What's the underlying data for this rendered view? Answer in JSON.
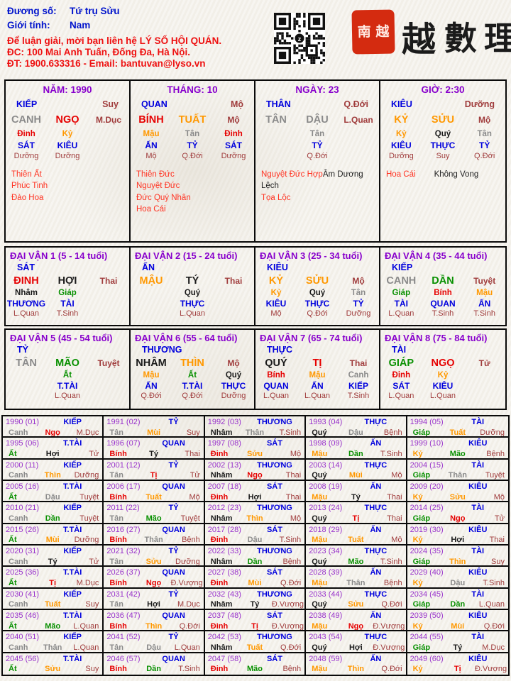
{
  "colors": {
    "metal": "#8a8a8a",
    "fire": "#e60000",
    "earth": "#ff9800",
    "wood": "#089000",
    "water": "#1a1a1a",
    "blue": "#0000dd",
    "stage": "#a03c3c",
    "purple": "#8800cc",
    "year": "#9933cc",
    "red": "#ff3322",
    "blueheader": "#0013cc",
    "redheader": "#ee1111",
    "seal": "#d42b10"
  },
  "header": {
    "owner_label": "Đương số:",
    "owner_value": "Tứ trụ Sửu",
    "gender_label": "Giới tính:",
    "gender_value": "Nam",
    "contact1": "Để luận giải, mời bạn liên hệ LÝ SỐ HỘI QUÁN.",
    "contact2": "ĐC: 100 Mai Anh Tuấn, Đống Đa, Hà Nội.",
    "contact3": "ĐT: 1900.633316 - Email: bantuvan@lyso.vn",
    "qr_logo": "z",
    "seal_text": [
      "南",
      "越"
    ],
    "brand_chars": [
      "南",
      "越",
      "數",
      "理"
    ]
  },
  "pillars": [
    {
      "title": "NĂM: 1990",
      "god": "KIẾP",
      "stage_top": "Suy",
      "stem": "CANH",
      "stem_el": "metal",
      "branch": "NGỌ",
      "branch_el": "fire",
      "stage": "M.Dục",
      "hidden": [
        {
          "name": "Đinh",
          "el": "fire",
          "god": "SÁT",
          "stage": "Dưỡng"
        },
        {
          "name": "Kỷ",
          "el": "earth",
          "god": "KIÊU",
          "stage": "Dưỡng"
        },
        null
      ],
      "stars": [
        [
          {
            "t": "Thiên Ất",
            "c": "red"
          }
        ],
        [
          {
            "t": "Phúc Tinh",
            "c": "red"
          }
        ],
        [
          {
            "t": "Đào Hoa",
            "c": "red"
          }
        ]
      ]
    },
    {
      "title": "THÁNG: 10",
      "god": "QUAN",
      "stage_top": "Mộ",
      "stem": "BÍNH",
      "stem_el": "fire",
      "branch": "TUẤT",
      "branch_el": "earth",
      "stage": "Mộ",
      "hidden": [
        {
          "name": "Mậu",
          "el": "earth",
          "god": "ẤN",
          "stage": "Mộ"
        },
        {
          "name": "Tân",
          "el": "metal",
          "god": "TỶ",
          "stage": "Q.Đới"
        },
        {
          "name": "Đinh",
          "el": "fire",
          "god": "SÁT",
          "stage": "Dưỡng"
        }
      ],
      "stars": [
        [
          {
            "t": "Thiên Đức",
            "c": "red"
          }
        ],
        [
          {
            "t": "Nguyệt Đức",
            "c": "red"
          }
        ],
        [
          {
            "t": "Đức Quý Nhân",
            "c": "red"
          }
        ],
        [
          {
            "t": "Hoa Cái",
            "c": "red"
          }
        ]
      ]
    },
    {
      "title": "NGÀY: 23",
      "god": "THÂN",
      "stage_top": "Q.Đới",
      "stem": "TÂN",
      "stem_el": "metal",
      "branch": "DẬU",
      "branch_el": "metal",
      "stage": "L.Quan",
      "hidden": [
        null,
        {
          "name": "Tân",
          "el": "metal",
          "god": "TỶ",
          "stage": "Q.Đới"
        },
        null
      ],
      "stars": [
        [
          {
            "t": "Nguyệt Đức Hợp",
            "c": "red"
          },
          {
            "t": "Âm Dương Lệch",
            "c": "black"
          }
        ],
        [
          {
            "t": "Tọa Lộc",
            "c": "red"
          }
        ]
      ]
    },
    {
      "title": "GIỜ: 2:30",
      "god": "KIÊU",
      "stage_top": "Dưỡng",
      "stem": "KỶ",
      "stem_el": "earth",
      "branch": "SỬU",
      "branch_el": "earth",
      "stage": "Mộ",
      "hidden": [
        {
          "name": "Kỷ",
          "el": "earth",
          "god": "KIÊU",
          "stage": "Dưỡng"
        },
        {
          "name": "Quý",
          "el": "water",
          "god": "THỰC",
          "stage": "Suy"
        },
        {
          "name": "Tân",
          "el": "metal",
          "god": "TỶ",
          "stage": "Q.Đới"
        }
      ],
      "stars": [
        [
          {
            "t": "Hoa Cái",
            "c": "red"
          },
          {
            "t": "Không Vong",
            "c": "black",
            "gap": true
          }
        ]
      ]
    }
  ],
  "daivan": [
    {
      "title": "ĐẠI VẬN 1 (5 - 14 tuổi)",
      "god": "SÁT",
      "stem": "ĐINH",
      "stem_el": "fire",
      "branch": "HỢI",
      "branch_el": "water",
      "stage": "Thai",
      "hidden": [
        {
          "name": "Nhâm",
          "el": "water",
          "god": "THƯƠNG",
          "stage": "L.Quan"
        },
        {
          "name": "Giáp",
          "el": "wood",
          "god": "TÀI",
          "stage": "T.Sinh"
        },
        null
      ]
    },
    {
      "title": "ĐẠI VẬN 2 (15 - 24 tuổi)",
      "god": "ẤN",
      "stem": "MẬU",
      "stem_el": "earth",
      "branch": "TÝ",
      "branch_el": "water",
      "stage": "Thai",
      "hidden": [
        null,
        {
          "name": "Quý",
          "el": "water",
          "god": "THỰC",
          "stage": "L.Quan"
        },
        null
      ]
    },
    {
      "title": "ĐẠI VẬN 3 (25 - 34 tuổi)",
      "god": "KIÊU",
      "stem": "KỶ",
      "stem_el": "earth",
      "branch": "SỬU",
      "branch_el": "earth",
      "stage": "Mộ",
      "hidden": [
        {
          "name": "Kỷ",
          "el": "earth",
          "god": "KIÊU",
          "stage": "Mộ"
        },
        {
          "name": "Quý",
          "el": "water",
          "god": "THỰC",
          "stage": "Q.Đới"
        },
        {
          "name": "Tân",
          "el": "metal",
          "god": "TỶ",
          "stage": "Dưỡng"
        }
      ]
    },
    {
      "title": "ĐẠI VẬN 4 (35 - 44 tuổi)",
      "god": "KIẾP",
      "stem": "CANH",
      "stem_el": "metal",
      "branch": "DẦN",
      "branch_el": "wood",
      "stage": "Tuyệt",
      "hidden": [
        {
          "name": "Giáp",
          "el": "wood",
          "god": "TÀI",
          "stage": "L.Quan"
        },
        {
          "name": "Bính",
          "el": "fire",
          "god": "QUAN",
          "stage": "T.Sinh"
        },
        {
          "name": "Mậu",
          "el": "earth",
          "god": "ẤN",
          "stage": "T.Sinh"
        }
      ]
    },
    {
      "title": "ĐẠI VẬN 5 (45 - 54 tuổi)",
      "god": "TỶ",
      "stem": "TÂN",
      "stem_el": "metal",
      "branch": "MÃO",
      "branch_el": "wood",
      "stage": "Tuyệt",
      "hidden": [
        null,
        {
          "name": "Ất",
          "el": "wood",
          "god": "T.TÀI",
          "stage": "L.Quan"
        },
        null
      ]
    },
    {
      "title": "ĐẠI VẬN 6 (55 - 64 tuổi)",
      "god": "THƯƠNG",
      "stem": "NHÂM",
      "stem_el": "water",
      "branch": "THÌN",
      "branch_el": "earth",
      "stage": "Mộ",
      "hidden": [
        {
          "name": "Mậu",
          "el": "earth",
          "god": "ẤN",
          "stage": "Q.Đới"
        },
        {
          "name": "Ất",
          "el": "wood",
          "god": "T.TÀI",
          "stage": "Q.Đới"
        },
        {
          "name": "Quý",
          "el": "water",
          "god": "THỰC",
          "stage": "Dưỡng"
        }
      ]
    },
    {
      "title": "ĐẠI VẬN 7 (65 - 74 tuổi)",
      "god": "THỰC",
      "stem": "QUÝ",
      "stem_el": "water",
      "branch": "TỊ",
      "branch_el": "fire",
      "stage": "Thai",
      "hidden": [
        {
          "name": "Bính",
          "el": "fire",
          "god": "QUAN",
          "stage": "L.Quan"
        },
        {
          "name": "Mậu",
          "el": "earth",
          "god": "ẤN",
          "stage": "L.Quan"
        },
        {
          "name": "Canh",
          "el": "metal",
          "god": "KIẾP",
          "stage": "T.Sinh"
        }
      ]
    },
    {
      "title": "ĐẠI VẬN 8 (75 - 84 tuổi)",
      "god": "TÀI",
      "stem": "GIÁP",
      "stem_el": "wood",
      "branch": "NGỌ",
      "branch_el": "fire",
      "stage": "Tử",
      "hidden": [
        {
          "name": "Đinh",
          "el": "fire",
          "god": "SÁT",
          "stage": "L.Quan"
        },
        {
          "name": "Kỷ",
          "el": "earth",
          "god": "KIÊU",
          "stage": "L.Quan"
        },
        null
      ]
    }
  ],
  "years": {
    "cells": [
      {
        "y": "1990 (01)",
        "god": "KIẾP",
        "s": "Canh",
        "se": "metal",
        "b": "Ngọ",
        "be": "fire",
        "st": "M.Dục"
      },
      {
        "y": "1991 (02)",
        "god": "TỶ",
        "s": "Tân",
        "se": "metal",
        "b": "Mùi",
        "be": "earth",
        "st": "Suy"
      },
      {
        "y": "1992 (03)",
        "god": "THƯƠNG",
        "s": "Nhâm",
        "se": "water",
        "b": "Thân",
        "be": "metal",
        "st": "T.Sinh"
      },
      {
        "y": "1993 (04)",
        "god": "THỰC",
        "s": "Quý",
        "se": "water",
        "b": "Dậu",
        "be": "metal",
        "st": "Bệnh"
      },
      {
        "y": "1994 (05)",
        "god": "TÀI",
        "s": "Giáp",
        "se": "wood",
        "b": "Tuất",
        "be": "earth",
        "st": "Dưỡng"
      },
      {
        "y": "1995 (06)",
        "god": "T.TÀI",
        "s": "Ất",
        "se": "wood",
        "b": "Hợi",
        "be": "water",
        "st": "Tử"
      },
      {
        "y": "1996 (07)",
        "god": "QUAN",
        "s": "Bính",
        "se": "fire",
        "b": "Tý",
        "be": "water",
        "st": "Thai"
      },
      {
        "y": "1997 (08)",
        "god": "SÁT",
        "s": "Đinh",
        "se": "fire",
        "b": "Sửu",
        "be": "earth",
        "st": "Mộ"
      },
      {
        "y": "1998 (09)",
        "god": "ẤN",
        "s": "Mậu",
        "se": "earth",
        "b": "Dần",
        "be": "wood",
        "st": "T.Sinh"
      },
      {
        "y": "1999 (10)",
        "god": "KIÊU",
        "s": "Kỷ",
        "se": "earth",
        "b": "Mão",
        "be": "wood",
        "st": "Bệnh"
      },
      {
        "y": "2000 (11)",
        "god": "KIẾP",
        "s": "Canh",
        "se": "metal",
        "b": "Thìn",
        "be": "earth",
        "st": "Dưỡng"
      },
      {
        "y": "2001 (12)",
        "god": "TỶ",
        "s": "Tân",
        "se": "metal",
        "b": "Tị",
        "be": "fire",
        "st": "Tử"
      },
      {
        "y": "2002 (13)",
        "god": "THƯƠNG",
        "s": "Nhâm",
        "se": "water",
        "b": "Ngọ",
        "be": "fire",
        "st": "Thai"
      },
      {
        "y": "2003 (14)",
        "god": "THỰC",
        "s": "Quý",
        "se": "water",
        "b": "Mùi",
        "be": "earth",
        "st": "Mộ"
      },
      {
        "y": "2004 (15)",
        "god": "TÀI",
        "s": "Giáp",
        "se": "wood",
        "b": "Thân",
        "be": "metal",
        "st": "Tuyệt"
      },
      {
        "y": "2005 (16)",
        "god": "T.TÀI",
        "s": "Ất",
        "se": "wood",
        "b": "Dậu",
        "be": "metal",
        "st": "Tuyệt"
      },
      {
        "y": "2006 (17)",
        "god": "QUAN",
        "s": "Bính",
        "se": "fire",
        "b": "Tuất",
        "be": "earth",
        "st": "Mộ"
      },
      {
        "y": "2007 (18)",
        "god": "SÁT",
        "s": "Đinh",
        "se": "fire",
        "b": "Hợi",
        "be": "water",
        "st": "Thai"
      },
      {
        "y": "2008 (19)",
        "god": "ẤN",
        "s": "Mậu",
        "se": "earth",
        "b": "Tý",
        "be": "water",
        "st": "Thai"
      },
      {
        "y": "2009 (20)",
        "god": "KIÊU",
        "s": "Kỷ",
        "se": "earth",
        "b": "Sửu",
        "be": "earth",
        "st": "Mộ"
      },
      {
        "y": "2010 (21)",
        "god": "KIẾP",
        "s": "Canh",
        "se": "metal",
        "b": "Dần",
        "be": "wood",
        "st": "Tuyệt"
      },
      {
        "y": "2011 (22)",
        "god": "TỶ",
        "s": "Tân",
        "se": "metal",
        "b": "Mão",
        "be": "wood",
        "st": "Tuyệt"
      },
      {
        "y": "2012 (23)",
        "god": "THƯƠNG",
        "s": "Nhâm",
        "se": "water",
        "b": "Thìn",
        "be": "earth",
        "st": "Mộ"
      },
      {
        "y": "2013 (24)",
        "god": "THỰC",
        "s": "Quý",
        "se": "water",
        "b": "Tị",
        "be": "fire",
        "st": "Thai"
      },
      {
        "y": "2014 (25)",
        "god": "TÀI",
        "s": "Giáp",
        "se": "wood",
        "b": "Ngọ",
        "be": "fire",
        "st": "Tử"
      },
      {
        "y": "2015 (26)",
        "god": "T.TÀI",
        "s": "Ất",
        "se": "wood",
        "b": "Mùi",
        "be": "earth",
        "st": "Dưỡng"
      },
      {
        "y": "2016 (27)",
        "god": "QUAN",
        "s": "Bính",
        "se": "fire",
        "b": "Thân",
        "be": "metal",
        "st": "Bệnh"
      },
      {
        "y": "2017 (28)",
        "god": "SÁT",
        "s": "Đinh",
        "se": "fire",
        "b": "Dậu",
        "be": "metal",
        "st": "T.Sinh"
      },
      {
        "y": "2018 (29)",
        "god": "ẤN",
        "s": "Mậu",
        "se": "earth",
        "b": "Tuất",
        "be": "earth",
        "st": "Mộ"
      },
      {
        "y": "2019 (30)",
        "god": "KIÊU",
        "s": "Kỷ",
        "se": "earth",
        "b": "Hợi",
        "be": "water",
        "st": "Thai"
      },
      {
        "y": "2020 (31)",
        "god": "KIẾP",
        "s": "Canh",
        "se": "metal",
        "b": "Tý",
        "be": "water",
        "st": "Tử"
      },
      {
        "y": "2021 (32)",
        "god": "TỶ",
        "s": "Tân",
        "se": "metal",
        "b": "Sửu",
        "be": "earth",
        "st": "Dưỡng"
      },
      {
        "y": "2022 (33)",
        "god": "THƯƠNG",
        "s": "Nhâm",
        "se": "water",
        "b": "Dần",
        "be": "wood",
        "st": "Bệnh"
      },
      {
        "y": "2023 (34)",
        "god": "THỰC",
        "s": "Quý",
        "se": "water",
        "b": "Mão",
        "be": "wood",
        "st": "T.Sinh"
      },
      {
        "y": "2024 (35)",
        "god": "TÀI",
        "s": "Giáp",
        "se": "wood",
        "b": "Thìn",
        "be": "earth",
        "st": "Suy"
      },
      {
        "y": "2025 (36)",
        "god": "T.TÀI",
        "s": "Ất",
        "se": "wood",
        "b": "Tị",
        "be": "fire",
        "st": "M.Dục"
      },
      {
        "y": "2026 (37)",
        "god": "QUAN",
        "s": "Bính",
        "se": "fire",
        "b": "Ngọ",
        "be": "fire",
        "st": "Đ.Vượng"
      },
      {
        "y": "2027 (38)",
        "god": "SÁT",
        "s": "Đinh",
        "se": "fire",
        "b": "Mùi",
        "be": "earth",
        "st": "Q.Đới"
      },
      {
        "y": "2028 (39)",
        "god": "ẤN",
        "s": "Mậu",
        "se": "earth",
        "b": "Thân",
        "be": "metal",
        "st": "Bệnh"
      },
      {
        "y": "2029 (40)",
        "god": "KIÊU",
        "s": "Kỷ",
        "se": "earth",
        "b": "Dậu",
        "be": "metal",
        "st": "T.Sinh"
      },
      {
        "y": "2030 (41)",
        "god": "KIẾP",
        "s": "Canh",
        "se": "metal",
        "b": "Tuất",
        "be": "earth",
        "st": "Suy"
      },
      {
        "y": "2031 (42)",
        "god": "TỶ",
        "s": "Tân",
        "se": "metal",
        "b": "Hợi",
        "be": "water",
        "st": "M.Dục"
      },
      {
        "y": "2032 (43)",
        "god": "THƯƠNG",
        "s": "Nhâm",
        "se": "water",
        "b": "Tý",
        "be": "water",
        "st": "Đ.Vượng"
      },
      {
        "y": "2033 (44)",
        "god": "THỰC",
        "s": "Quý",
        "se": "water",
        "b": "Sửu",
        "be": "earth",
        "st": "Q.Đới"
      },
      {
        "y": "2034 (45)",
        "god": "TÀI",
        "s": "Giáp",
        "se": "wood",
        "b": "Dần",
        "be": "wood",
        "st": "L.Quan"
      },
      {
        "y": "2035 (46)",
        "god": "T.TÀI",
        "s": "Ất",
        "se": "wood",
        "b": "Mão",
        "be": "wood",
        "st": "L.Quan"
      },
      {
        "y": "2036 (47)",
        "god": "QUAN",
        "s": "Bính",
        "se": "fire",
        "b": "Thìn",
        "be": "earth",
        "st": "Q.Đới"
      },
      {
        "y": "2037 (48)",
        "god": "SÁT",
        "s": "Đinh",
        "se": "fire",
        "b": "Tị",
        "be": "fire",
        "st": "Đ.Vượng"
      },
      {
        "y": "2038 (49)",
        "god": "ẤN",
        "s": "Mậu",
        "se": "earth",
        "b": "Ngọ",
        "be": "fire",
        "st": "Đ.Vượng"
      },
      {
        "y": "2039 (50)",
        "god": "KIÊU",
        "s": "Kỷ",
        "se": "earth",
        "b": "Mùi",
        "be": "earth",
        "st": "Q.Đới"
      },
      {
        "y": "2040 (51)",
        "god": "KIẾP",
        "s": "Canh",
        "se": "metal",
        "b": "Thân",
        "be": "metal",
        "st": "L.Quan"
      },
      {
        "y": "2041 (52)",
        "god": "TỶ",
        "s": "Tân",
        "se": "metal",
        "b": "Dậu",
        "be": "metal",
        "st": "L.Quan"
      },
      {
        "y": "2042 (53)",
        "god": "THƯƠNG",
        "s": "Nhâm",
        "se": "water",
        "b": "Tuất",
        "be": "earth",
        "st": "Q.Đới"
      },
      {
        "y": "2043 (54)",
        "god": "THỰC",
        "s": "Quý",
        "se": "water",
        "b": "Hợi",
        "be": "water",
        "st": "Đ.Vượng"
      },
      {
        "y": "2044 (55)",
        "god": "TÀI",
        "s": "Giáp",
        "se": "wood",
        "b": "Tý",
        "be": "water",
        "st": "M.Dục"
      },
      {
        "y": "2045 (56)",
        "god": "T.TÀI",
        "s": "Ất",
        "se": "wood",
        "b": "Sửu",
        "be": "earth",
        "st": "Suy"
      },
      {
        "y": "2046 (57)",
        "god": "QUAN",
        "s": "Bính",
        "se": "fire",
        "b": "Dần",
        "be": "wood",
        "st": "T.Sinh"
      },
      {
        "y": "2047 (58)",
        "god": "SÁT",
        "s": "Đinh",
        "se": "fire",
        "b": "Mão",
        "be": "wood",
        "st": "Bệnh"
      },
      {
        "y": "2048 (59)",
        "god": "ẤN",
        "s": "Mậu",
        "se": "earth",
        "b": "Thìn",
        "be": "earth",
        "st": "Q.Đới"
      },
      {
        "y": "2049 (60)",
        "god": "KIÊU",
        "s": "Kỷ",
        "se": "earth",
        "b": "Tị",
        "be": "fire",
        "st": "Đ.Vượng"
      }
    ]
  }
}
